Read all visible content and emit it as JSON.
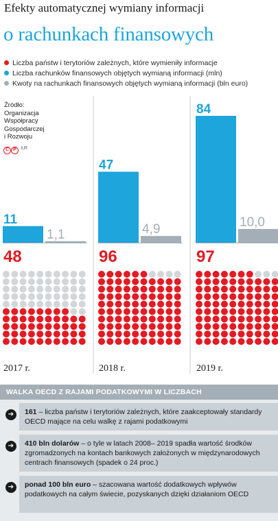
{
  "title": {
    "line1": "Efekty automatycznej wymiany informacji",
    "line2": "o rachunkach finansowych"
  },
  "legend": [
    {
      "label": "Liczba państw i terytoriów zależnych, które wymieniły informacje",
      "color": "#e31b23"
    },
    {
      "label": "Liczba rachunków finansowych objętych wymianą informacji (mln)",
      "color": "#1ea5dc"
    },
    {
      "label": "Kwoty na rachunkach finansowych objętych wymianą informacji (bln euro)",
      "color": "#a4aeb6"
    }
  ],
  "source": "Źródło:\nOrganizacja\nWspółpracy\nGospodarczej\ni Rozwoju",
  "logo": {
    "marks": [
      "C",
      "P"
    ],
    "text": "ŁR"
  },
  "chart_data": {
    "type": "bar",
    "categories": [
      "2017 r.",
      "2018 r.",
      "2019 r."
    ],
    "series": [
      {
        "name": "Liczba państw i terytoriów zależnych, które wymieniły informacje",
        "values": [
          48,
          96,
          97
        ],
        "labels": [
          "48",
          "96",
          "97"
        ],
        "color": "#e31b23"
      },
      {
        "name": "Liczba rachunków finansowych objętych wymianą informacji (mln)",
        "values": [
          11,
          47,
          84
        ],
        "labels": [
          "11",
          "47",
          "84"
        ],
        "color": "#1ea5dc"
      },
      {
        "name": "Kwoty na rachunkach finansowych objętych wymianą informacji (bln euro)",
        "values": [
          1.1,
          4.9,
          10.0
        ],
        "labels": [
          "1,1",
          "4,9",
          "10,0"
        ],
        "color": "#a4aeb6"
      }
    ],
    "dot_grid_total": 100,
    "empty_dot_color": "#d3d6d9"
  },
  "panel": {
    "header": "WALKA OECD Z RAJAMI PODATKOWYMI W LICZBACH",
    "arrow_icon": "arrow-right-icon",
    "items": [
      {
        "bold": "161",
        "text": " – liczba państw i terytoriów zależnych, które zaakceptowały standardy OECD mające na celu walkę z rajami podatkowymi"
      },
      {
        "bold": "410 bln dolarów",
        "text": " – o tyle w latach 2008– 2019 spadła wartość środków zgromadzonych na kontach bankowych założonych w międzynarodowych centrach finansowych (spadek o 24 proc.)"
      },
      {
        "bold": "ponad 100 bln euro",
        "text": " – szacowana wartość dodatkowych wpływów podatkowych na całym świecie, pozyskanych dzięki działaniom OECD"
      }
    ]
  }
}
